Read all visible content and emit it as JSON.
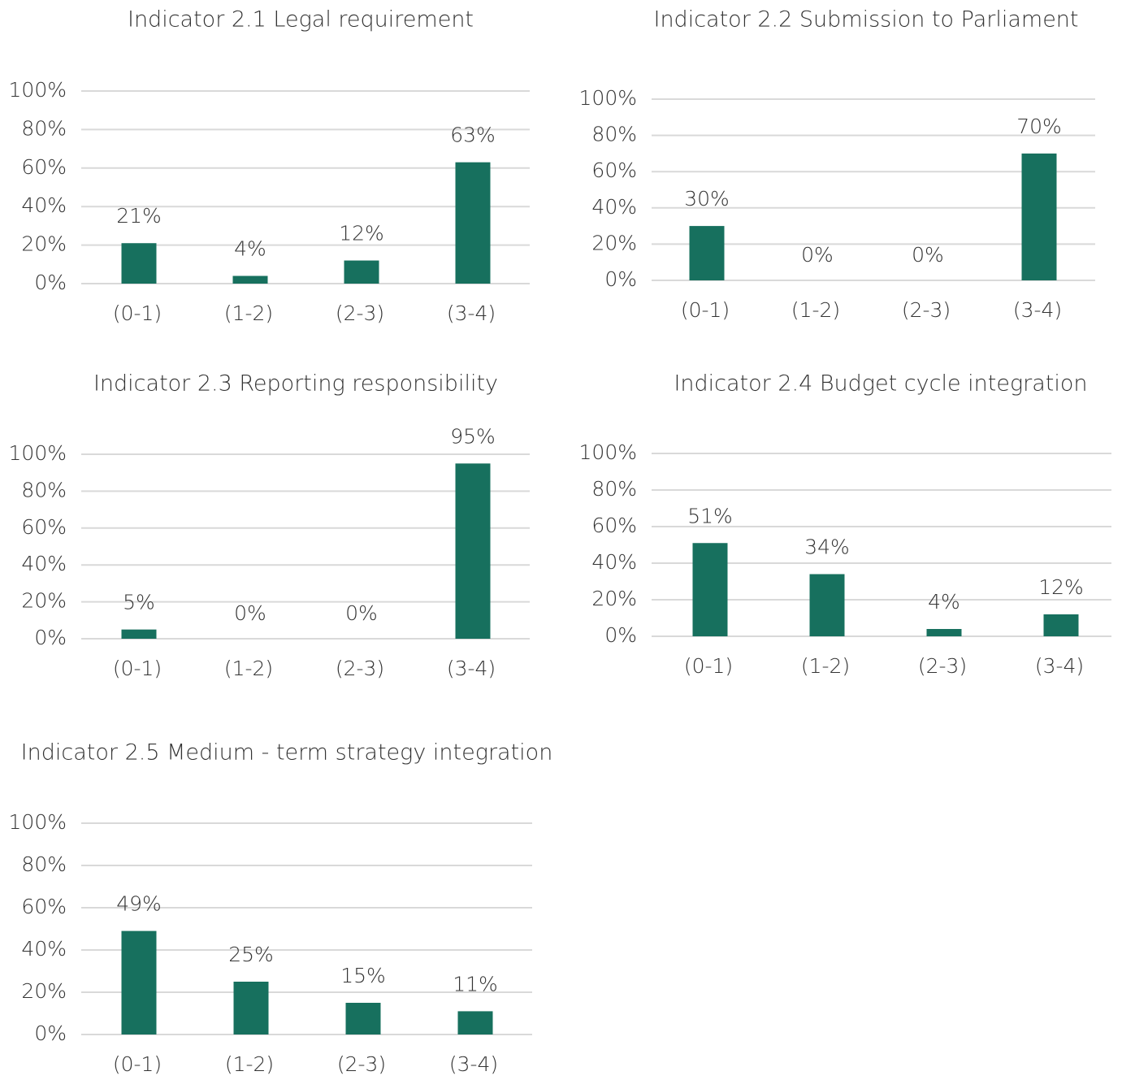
{
  "chart_data": [
    {
      "type": "bar",
      "title": "Indicator 2.1 Legal requirement",
      "categories": [
        "(0-1)",
        "(1-2)",
        "(2-3)",
        "(3-4)"
      ],
      "values": [
        21,
        4,
        12,
        63
      ],
      "value_labels": [
        "21%",
        "4%",
        "12%",
        "63%"
      ],
      "color": "#17705e",
      "ylim": [
        0,
        100
      ],
      "yticks": [
        {
          "value": 0,
          "label": "0%"
        },
        {
          "value": 20,
          "label": "20%"
        },
        {
          "value": 40,
          "label": "40%"
        },
        {
          "value": 60,
          "label": "60%"
        },
        {
          "value": 80,
          "label": "80%"
        },
        {
          "value": 100,
          "label": "100%"
        }
      ],
      "grid": true
    },
    {
      "type": "bar",
      "title": "Indicator 2.2 Submission to Parliament",
      "categories": [
        "(0-1)",
        "(1-2)",
        "(2-3)",
        "(3-4)"
      ],
      "values": [
        30,
        0,
        0,
        70
      ],
      "value_labels": [
        "30%",
        "0%",
        "0%",
        "70%"
      ],
      "color": "#17705e",
      "ylim": [
        0,
        100
      ],
      "yticks": [
        {
          "value": 0,
          "label": "0%"
        },
        {
          "value": 20,
          "label": "20%"
        },
        {
          "value": 40,
          "label": "40%"
        },
        {
          "value": 60,
          "label": "60%"
        },
        {
          "value": 80,
          "label": "80%"
        },
        {
          "value": 100,
          "label": "100%"
        }
      ],
      "grid": true
    },
    {
      "type": "bar",
      "title": "Indicator 2.3 Reporting responsibility",
      "categories": [
        "(0-1)",
        "(1-2)",
        "(2-3)",
        "(3-4)"
      ],
      "values": [
        5,
        0,
        0,
        95
      ],
      "value_labels": [
        "5%",
        "0%",
        "0%",
        "95%"
      ],
      "color": "#17705e",
      "ylim": [
        0,
        100
      ],
      "yticks": [
        {
          "value": 0,
          "label": "0%"
        },
        {
          "value": 20,
          "label": "20%"
        },
        {
          "value": 40,
          "label": "40%"
        },
        {
          "value": 60,
          "label": "60%"
        },
        {
          "value": 80,
          "label": "80%"
        },
        {
          "value": 100,
          "label": "100%"
        }
      ],
      "grid": true
    },
    {
      "type": "bar",
      "title": "Indicator 2.4 Budget cycle integration",
      "categories": [
        "(0-1)",
        "(1-2)",
        "(2-3)",
        "(3-4)"
      ],
      "values": [
        51,
        34,
        4,
        12
      ],
      "value_labels": [
        "51%",
        "34%",
        "4%",
        "12%"
      ],
      "color": "#17705e",
      "ylim": [
        0,
        100
      ],
      "yticks": [
        {
          "value": 0,
          "label": "0%"
        },
        {
          "value": 20,
          "label": "20%"
        },
        {
          "value": 40,
          "label": "40%"
        },
        {
          "value": 60,
          "label": "60%"
        },
        {
          "value": 80,
          "label": "80%"
        },
        {
          "value": 100,
          "label": "100%"
        }
      ],
      "grid": true
    },
    {
      "type": "bar",
      "title": "Indicator 2.5 Medium - term strategy integration",
      "categories": [
        "(0-1)",
        "(1-2)",
        "(2-3)",
        "(3-4)"
      ],
      "values": [
        49,
        25,
        15,
        11
      ],
      "value_labels": [
        "49%",
        "25%",
        "15%",
        "11%"
      ],
      "color": "#17705e",
      "ylim": [
        0,
        100
      ],
      "yticks": [
        {
          "value": 0,
          "label": "0%"
        },
        {
          "value": 20,
          "label": "20%"
        },
        {
          "value": 40,
          "label": "40%"
        },
        {
          "value": 60,
          "label": "60%"
        },
        {
          "value": 80,
          "label": "80%"
        },
        {
          "value": 100,
          "label": "100%"
        }
      ],
      "grid": true
    }
  ]
}
